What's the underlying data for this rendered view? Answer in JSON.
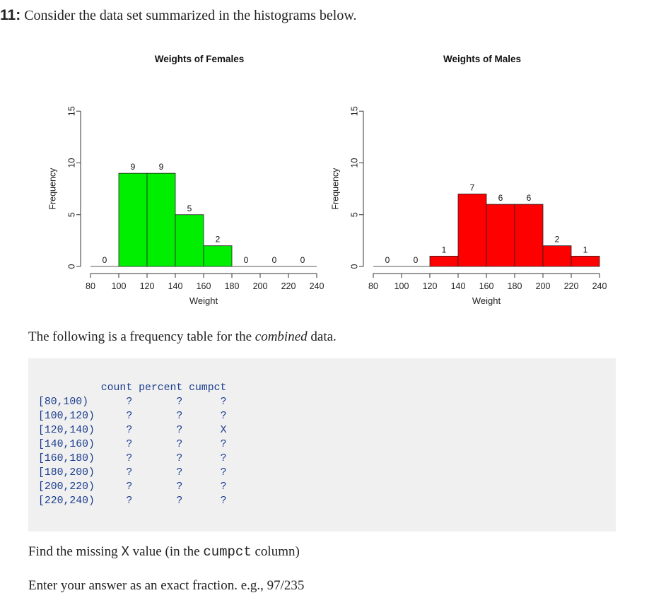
{
  "question": {
    "number": "11:",
    "text": "Consider the data set summarized in the histograms below."
  },
  "chart_data": [
    {
      "type": "bar",
      "title": "Weights of Females",
      "xlabel": "Weight",
      "ylabel": "Frequency",
      "bins": [
        [
          80,
          100
        ],
        [
          100,
          120
        ],
        [
          120,
          140
        ],
        [
          140,
          160
        ],
        [
          160,
          180
        ],
        [
          180,
          200
        ],
        [
          200,
          220
        ],
        [
          220,
          240
        ]
      ],
      "values": [
        0,
        9,
        9,
        5,
        2,
        0,
        0,
        0
      ],
      "value_labels": [
        "0",
        "9",
        "9",
        "5",
        "2",
        "0",
        "0",
        "0"
      ],
      "bar_color": "#00ee00",
      "x_ticks": [
        "80",
        "100",
        "120",
        "140",
        "160",
        "180",
        "200",
        "220",
        "240"
      ],
      "y_ticks": [
        "0",
        "5",
        "10",
        "15"
      ],
      "xlim": [
        80,
        240
      ],
      "ylim": [
        0,
        15
      ]
    },
    {
      "type": "bar",
      "title": "Weights of Males",
      "xlabel": "Weight",
      "ylabel": "Frequency",
      "bins": [
        [
          80,
          100
        ],
        [
          100,
          120
        ],
        [
          120,
          140
        ],
        [
          140,
          160
        ],
        [
          160,
          180
        ],
        [
          180,
          200
        ],
        [
          200,
          220
        ],
        [
          220,
          240
        ]
      ],
      "values": [
        0,
        0,
        1,
        7,
        6,
        6,
        2,
        1
      ],
      "value_labels": [
        "0",
        "0",
        "1",
        "7",
        "6",
        "6",
        "2",
        "1"
      ],
      "bar_color": "#ff0000",
      "x_ticks": [
        "80",
        "100",
        "120",
        "140",
        "160",
        "180",
        "200",
        "220",
        "240"
      ],
      "y_ticks": [
        "0",
        "5",
        "10",
        "15"
      ],
      "xlim": [
        80,
        240
      ],
      "ylim": [
        0,
        15
      ]
    }
  ],
  "intro": {
    "before": "The following is a frequency table for the ",
    "emph": "combined",
    "after": " data."
  },
  "freq_table": {
    "headers": [
      "count",
      "percent",
      "cumpct"
    ],
    "rows": [
      {
        "interval": "[80,100)",
        "count": "?",
        "percent": "?",
        "cumpct": "?"
      },
      {
        "interval": "[100,120)",
        "count": "?",
        "percent": "?",
        "cumpct": "?"
      },
      {
        "interval": "[120,140)",
        "count": "?",
        "percent": "?",
        "cumpct": "X"
      },
      {
        "interval": "[140,160)",
        "count": "?",
        "percent": "?",
        "cumpct": "?"
      },
      {
        "interval": "[160,180)",
        "count": "?",
        "percent": "?",
        "cumpct": "?"
      },
      {
        "interval": "[180,200)",
        "count": "?",
        "percent": "?",
        "cumpct": "?"
      },
      {
        "interval": "[200,220)",
        "count": "?",
        "percent": "?",
        "cumpct": "?"
      },
      {
        "interval": "[220,240)",
        "count": "?",
        "percent": "?",
        "cumpct": "?"
      }
    ]
  },
  "find": {
    "before": "Find the missing ",
    "var": "X",
    "middle": " value (in the ",
    "code": "cumpct",
    "after": " column)"
  },
  "instruction": "Enter your answer as an exact fraction. e.g., 97/235"
}
